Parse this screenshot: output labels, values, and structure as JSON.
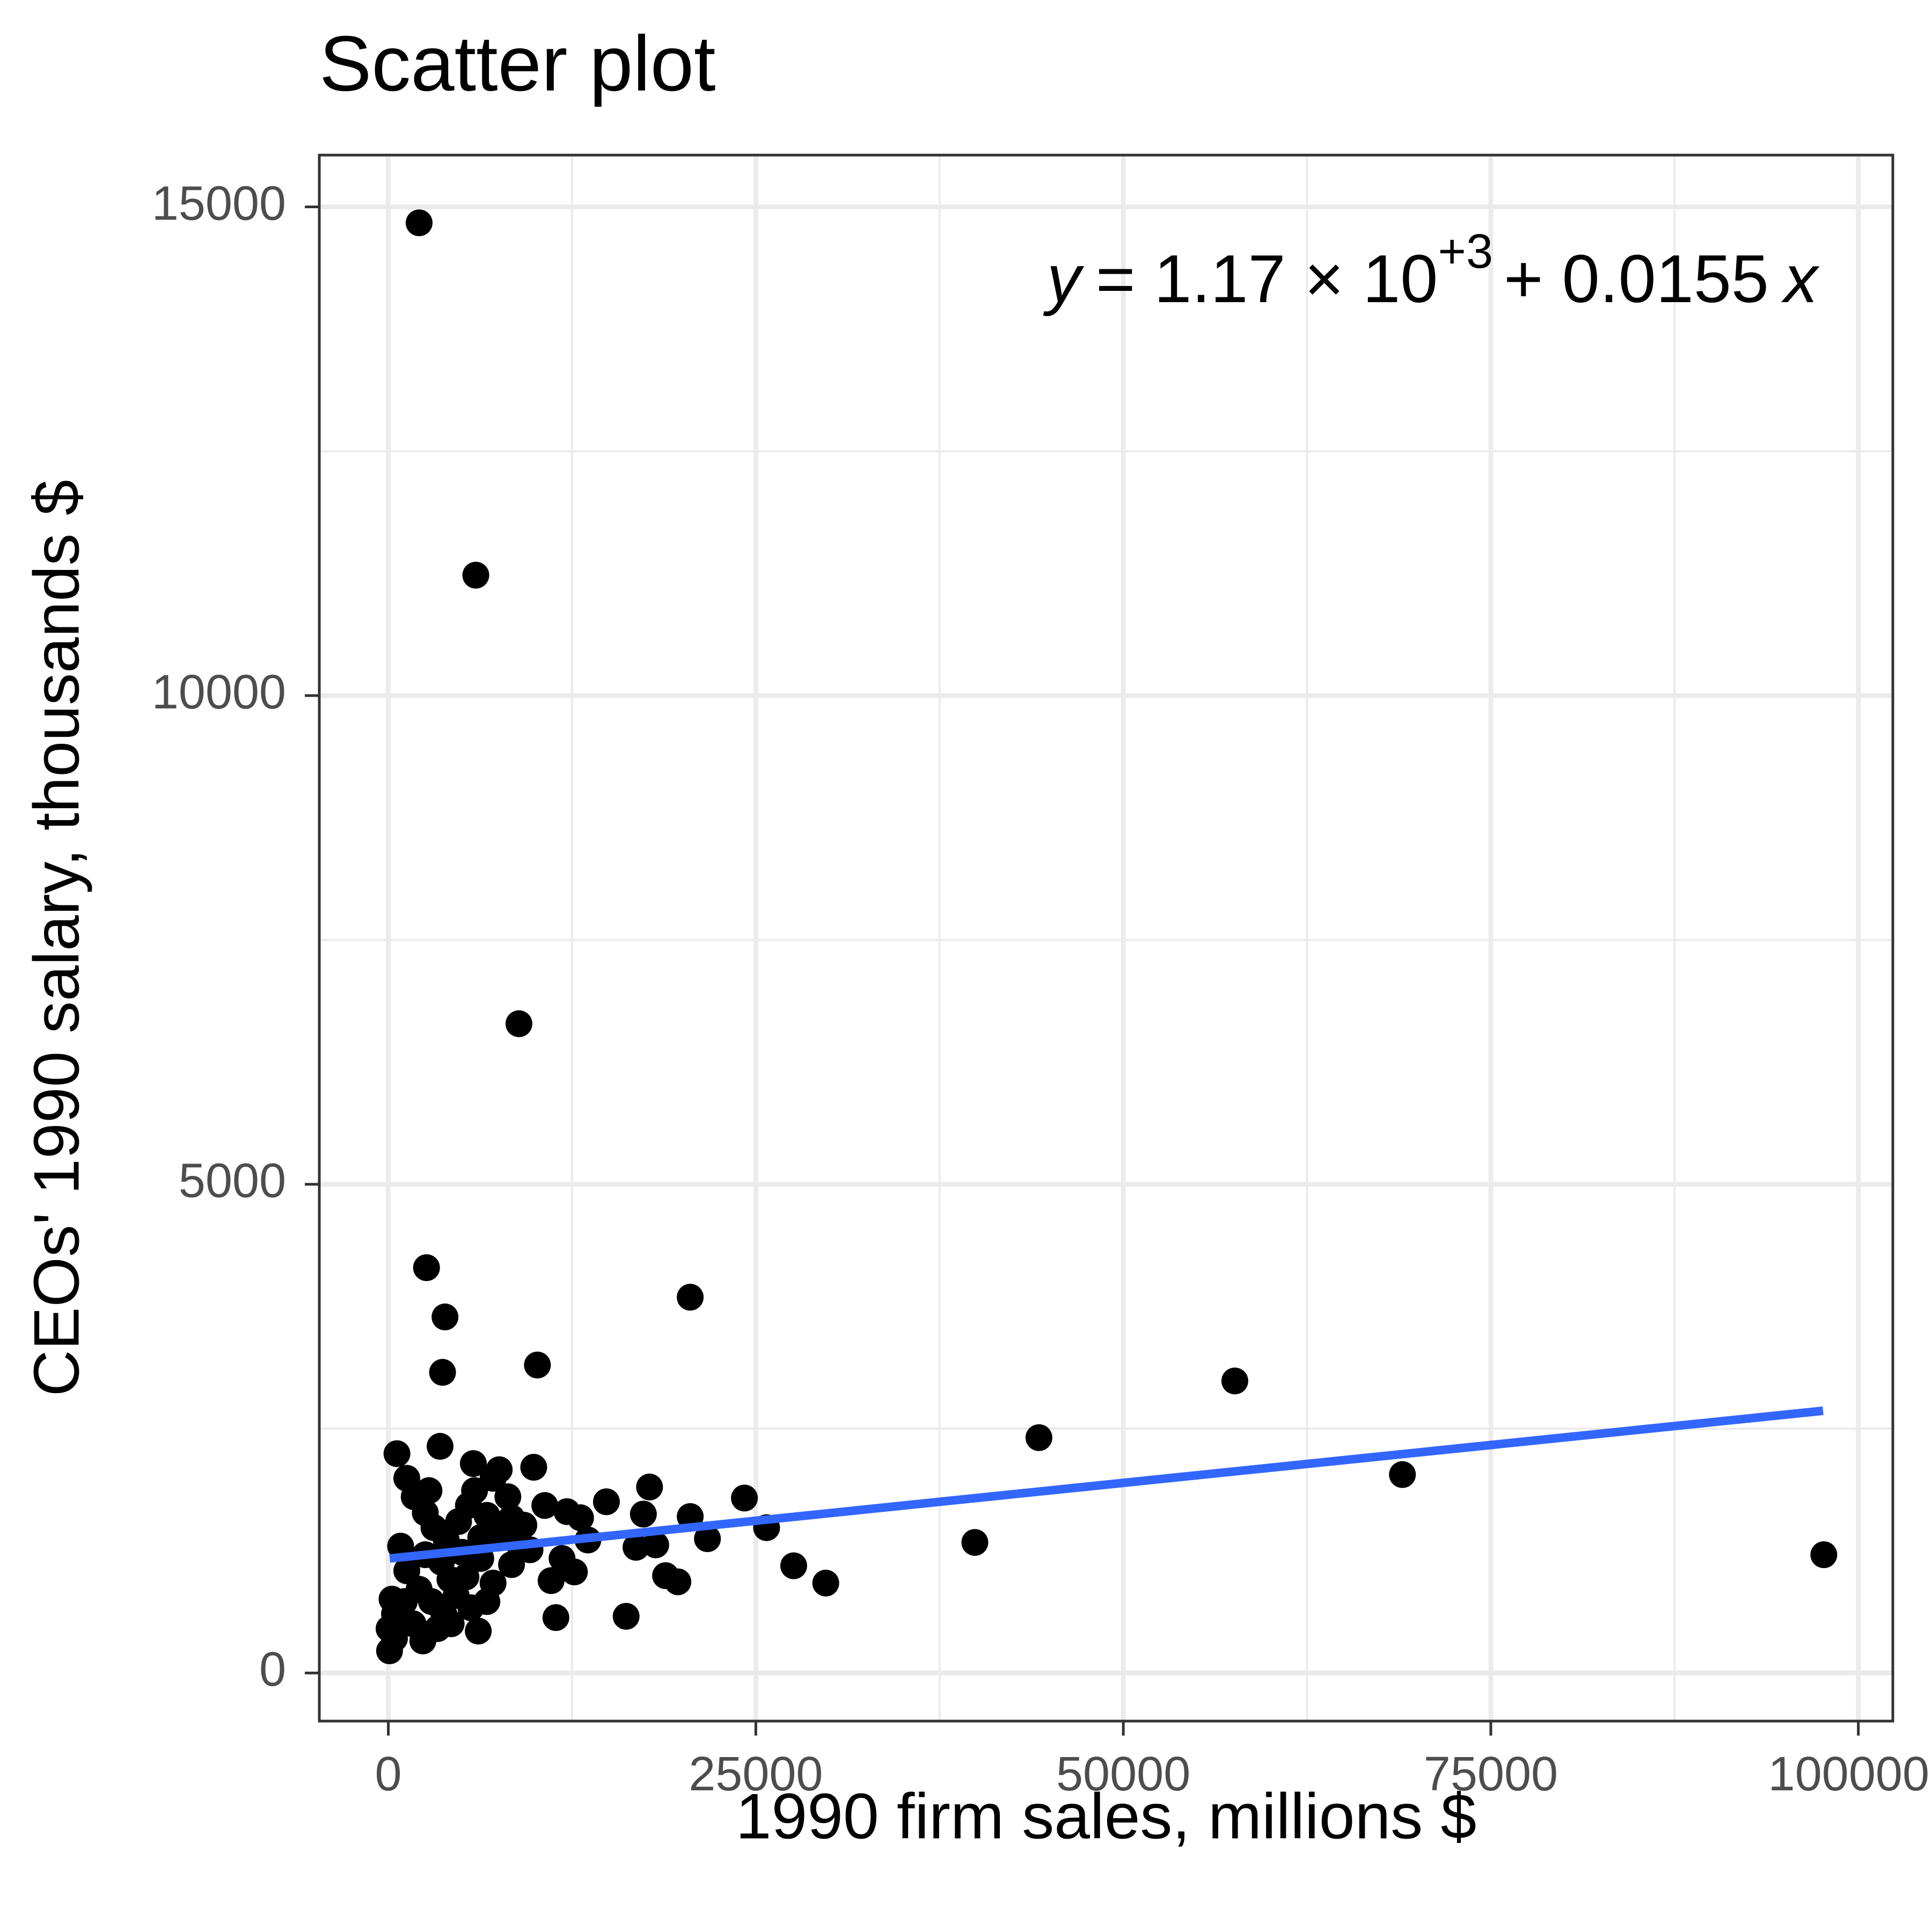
{
  "chart_data": {
    "type": "scatter",
    "title": "Scatter plot",
    "x_label": "1990 firm sales, millions $",
    "y_label": "CEOs' 1990 salary, thousands $",
    "equation": {
      "lhs": "y",
      "eq": "= 1.17 × 10",
      "exp": "+3",
      "rhs": "+ 0.0155",
      "var": "x"
    },
    "xlim": [
      -4694,
      102347
    ],
    "ylim": [
      -492,
      15530
    ],
    "xticks": [
      0,
      25000,
      50000,
      75000,
      100000
    ],
    "yticks": [
      0,
      5000,
      10000,
      15000
    ],
    "grid": true,
    "color": "#000000",
    "x": [
      2096,
      5951,
      8885,
      2598,
      3856,
      20537,
      3688,
      10143,
      57586,
      44258,
      68986,
      39899,
      97653,
      587,
      3521,
      5784,
      7544,
      9891,
      17770,
      14836,
      24224,
      20537,
      17351,
      21710,
      25733,
      27577,
      29757,
      19698,
      18860,
      16848,
      18189,
      16178,
      11400,
      12657,
      11073,
      13579,
      12154,
      10646,
      8382,
      6119,
      84,
      50,
      1257,
      1760,
      2515,
      3102,
      3940,
      4778,
      5449,
      6706,
      7544,
      8131,
      838,
      1257,
      2096,
      2934,
      3772,
      4610,
      5281,
      6287,
      7125,
      8634,
      1090,
      1676,
      2347,
      3353,
      4275,
      5616,
      6706,
      419,
      419,
      251,
      9640,
      9220,
      6287,
      3604,
      2515,
      5030,
      5867,
      7125,
      2766,
      4191,
      8382,
      13076,
      11819
    ],
    "y": [
      14837,
      11232,
      6643,
      4147,
      3643,
      3845,
      3076,
      3151,
      2988,
      2408,
      2030,
      1336,
      1210,
      2244,
      2319,
      2143,
      2080,
      2105,
      1903,
      1752,
      1790,
      1601,
      1626,
      1374,
      1487,
      1097,
      920,
      933,
      996,
      1286,
      1311,
      580,
      567,
      1034,
      945,
      1361,
      1651,
      1714,
      1109,
      429,
      227,
      454,
      1992,
      1803,
      1639,
      1487,
      1361,
      1550,
      1714,
      1613,
      1424,
      1803,
      1298,
      1046,
      857,
      731,
      605,
      794,
      983,
      1172,
      920,
      1361,
      731,
      504,
      328,
      454,
      504,
      668,
      731,
      605,
      353,
      756,
      1261,
      1513,
      1386,
      1134,
      1210,
      1235,
      1866,
      1992,
      1866,
      958,
      1588,
      1588,
      1172
    ],
    "fit": {
      "color": "#3366ff",
      "x": [
        100,
        97600
      ],
      "y": [
        1172,
        2683
      ]
    }
  }
}
